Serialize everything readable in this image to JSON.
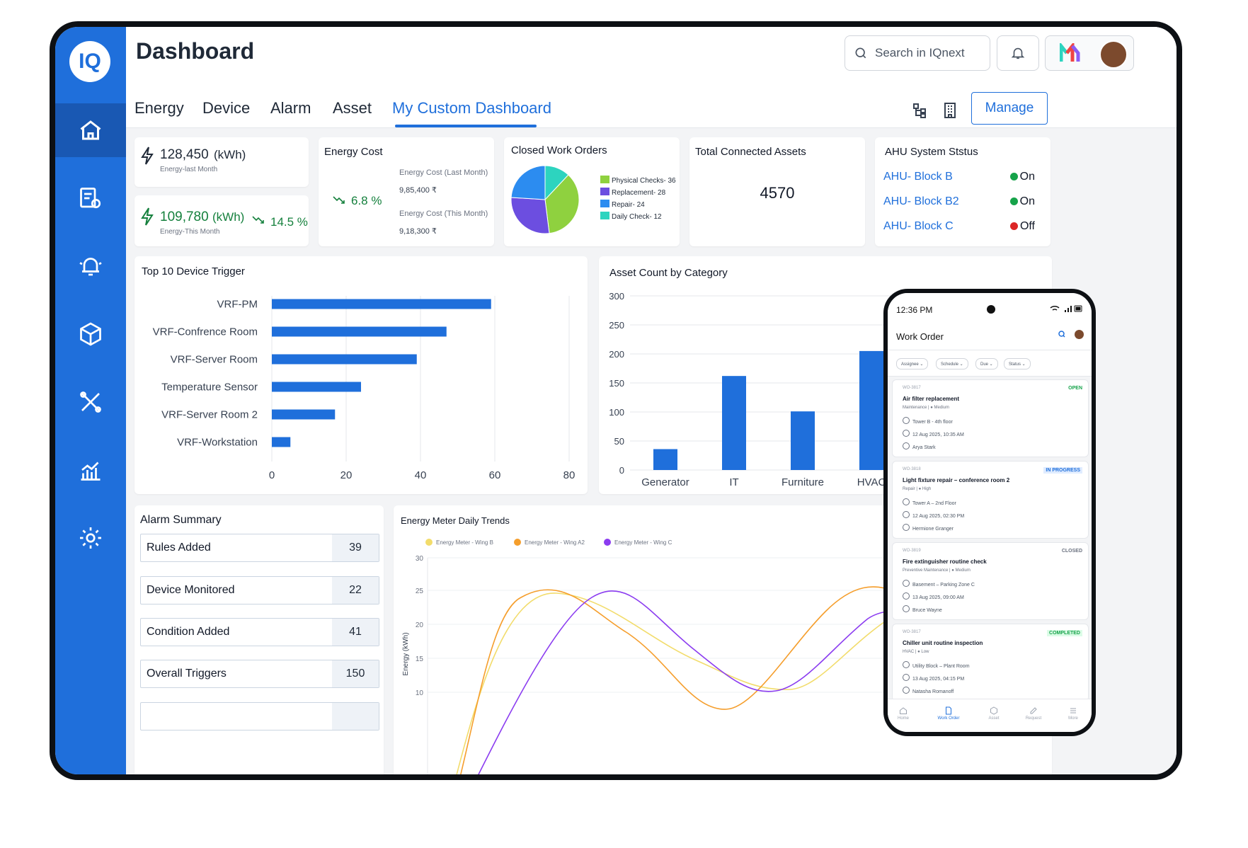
{
  "app": {
    "title": "Dashboard",
    "logo_text": "IQ"
  },
  "search": {
    "placeholder": "Search in IQnext"
  },
  "tabs": [
    {
      "label": "Energy"
    },
    {
      "label": "Device"
    },
    {
      "label": "Alarm"
    },
    {
      "label": "Asset"
    },
    {
      "label": "My Custom Dashboard"
    }
  ],
  "manage_label": "Manage",
  "energy_cards": {
    "last_month_value": "128,450",
    "last_month_unit": "(kWh)",
    "last_month_label": "Energy-last Month",
    "this_month_value": "109,780",
    "this_month_unit": "(kWh)",
    "this_month_label": "Energy-This Month",
    "this_month_change": "14.5 %"
  },
  "energy_cost": {
    "title": "Energy Cost",
    "change": "6.8 %",
    "last_label": "Energy Cost (Last Month)",
    "last_value": "9,85,400 ₹",
    "this_label": "Energy Cost (This Month)",
    "this_value": "9,18,300 ₹"
  },
  "closed_work_orders": {
    "title": "Closed Work Orders",
    "legend": [
      "Physical Checks- 36",
      "Replacement- 28",
      "Repair- 24",
      "Daily Check- 12"
    ]
  },
  "total_assets": {
    "title": "Total Connected Assets",
    "value": "4570"
  },
  "ahu": {
    "title": "AHU System Ststus",
    "rows": [
      {
        "name": "AHU- Block B",
        "status": "On",
        "color": "#16a34a"
      },
      {
        "name": "AHU- Block B2",
        "status": "On",
        "color": "#16a34a"
      },
      {
        "name": "AHU- Block C",
        "status": "Off",
        "color": "#dc2626"
      }
    ]
  },
  "alarm_summary": {
    "title": "Alarm Summary",
    "rows": [
      {
        "label": "Rules Added",
        "value": "39"
      },
      {
        "label": "Device Monitored",
        "value": "22"
      },
      {
        "label": "Condition Added",
        "value": "41"
      },
      {
        "label": "Overall Triggers",
        "value": "150"
      }
    ]
  },
  "colors": {
    "primary": "#1f6fdb",
    "sidebar": "#1f6fdb",
    "positive": "#15803d"
  },
  "chart_data": [
    {
      "type": "pie",
      "title": "Closed Work Orders",
      "categories": [
        "Physical Checks",
        "Replacement",
        "Repair",
        "Daily Check"
      ],
      "values": [
        36,
        28,
        24,
        12
      ],
      "colors": [
        "#8fd13f",
        "#6c4ee0",
        "#2c8cf0",
        "#2dd4bf"
      ]
    },
    {
      "type": "bar",
      "orientation": "horizontal",
      "title": "Top 10 Device Trigger",
      "categories": [
        "VRF-PM",
        "VRF-Confrence Room",
        "VRF-Server Room",
        "Temperature Sensor",
        "VRF-Server Room 2",
        "VRF-Workstation"
      ],
      "values": [
        59,
        47,
        39,
        24,
        17,
        5
      ],
      "xlim": [
        0,
        80
      ],
      "xticks": [
        "0",
        "20",
        "40",
        "60",
        "80"
      ]
    },
    {
      "type": "bar",
      "title": "Asset Count by Category",
      "categories": [
        "Generator",
        "IT",
        "Furniture",
        "HVAC"
      ],
      "values": [
        36,
        162,
        101,
        205
      ],
      "ylim": [
        0,
        300
      ],
      "yticks": [
        "0",
        "50",
        "100",
        "150",
        "200",
        "250",
        "300"
      ]
    },
    {
      "type": "line",
      "title": "Energy Meter Daily Trends",
      "ylabel": "Energy (kWh)",
      "yticks": [
        "10",
        "15",
        "20",
        "25",
        "30"
      ],
      "series": [
        {
          "name": "Energy Meter - Wing B",
          "color": "#f2dc6b"
        },
        {
          "name": "Energy Meter - Wing A2",
          "color": "#f59e2c"
        },
        {
          "name": "Energy Meter - Wing C",
          "color": "#8b3cf0"
        }
      ]
    }
  ],
  "phone": {
    "time": "12:36 PM",
    "title": "Work Order",
    "filters": [
      "Assignee ⌄",
      "Schedule ⌄",
      "Due ⌄",
      "Status ⌄"
    ],
    "orders": [
      {
        "id": "WO-3817",
        "status": "OPEN",
        "status_color": "#16a34a",
        "title": "Air filter replacement",
        "tag": "Maintenance | ● Medium",
        "location": "Tower B - 4th floor",
        "time": "12 Aug 2025, 10:35 AM",
        "person": "Arya Stark"
      },
      {
        "id": "WO-3818",
        "status": "IN PROGRESS",
        "status_color": "#1f6fdb",
        "title": "Light fixture repair – conference room 2",
        "tag": "Repair | ● High",
        "location": "Tower A – 2nd Floor",
        "time": "12 Aug 2025, 02:30 PM",
        "person": "Hermione Granger"
      },
      {
        "id": "WO-3819",
        "status": "CLOSED",
        "status_color": "#6b7280",
        "title": "Fire extinguisher routine check",
        "tag": "Preventive Maintenance | ● Medium",
        "location": "Basement – Parking Zone C",
        "time": "13 Aug 2025, 09:00 AM",
        "person": "Bruce Wayne"
      },
      {
        "id": "WO-3817",
        "status": "COMPLETED",
        "status_color": "#16a34a",
        "title": "Chiller unit routine inspection",
        "tag": "HVAC | ● Low",
        "location": "Utility Block – Plant Room",
        "time": "13 Aug 2025, 04:15 PM",
        "person": "Natasha Romanoff"
      }
    ],
    "nav": [
      "Home",
      "Work Order",
      "Asset",
      "Request",
      "More"
    ]
  }
}
